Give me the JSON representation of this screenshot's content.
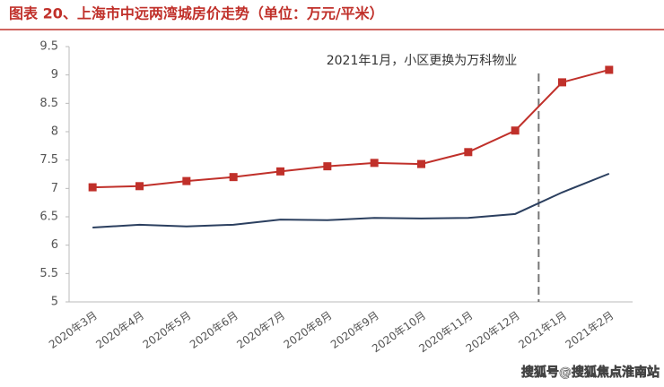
{
  "chart_data": {
    "type": "line",
    "title": "图表 20、上海市中远两湾城房价走势（单位：万元/平米）",
    "annotation": "2021年1月，小区更换为万科物业",
    "watermark": "搜狐号@搜狐焦点淮南站",
    "categories": [
      "2020年3月",
      "2020年4月",
      "2020年5月",
      "2020年6月",
      "2020年7月",
      "2020年8月",
      "2020年9月",
      "2020年10月",
      "2020年11月",
      "2020年12月",
      "2021年1月",
      "2021年2月"
    ],
    "series": [
      {
        "color": "#c0302a",
        "marker": "square",
        "values": [
          7.02,
          7.04,
          7.13,
          7.2,
          7.3,
          7.39,
          7.45,
          7.43,
          7.64,
          8.02,
          8.87,
          9.09
        ]
      },
      {
        "color": "#2b3f5f",
        "values": [
          6.31,
          6.36,
          6.33,
          6.36,
          6.45,
          6.44,
          6.48,
          6.47,
          6.48,
          6.55,
          6.93,
          7.26
        ]
      }
    ],
    "ylim": [
      5,
      9.5
    ],
    "yticks": [
      5,
      5.5,
      6,
      6.5,
      7,
      7.5,
      8,
      8.5,
      9,
      9.5
    ]
  }
}
